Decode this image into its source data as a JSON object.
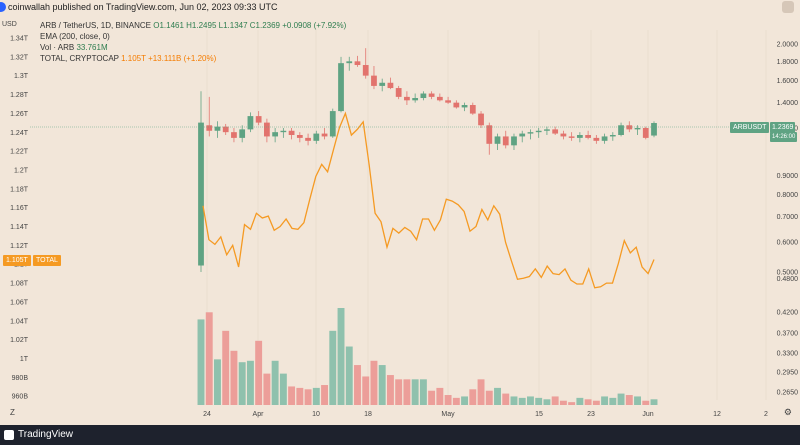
{
  "header": {
    "published_text": "coinwallah published on TradingView.com, Jun 02, 2023 09:33 UTC"
  },
  "legend": {
    "line1_prefix": "ARB / TetherUS, 1D, BINANCE",
    "line1_ohlc": "O1.1461 H1.2495 L1.1347 C1.2369 +0.0908 (+7.92%)",
    "ema": "EMA (200, close, 0)",
    "vol_label": "Vol · ARB",
    "vol_value": "33.761M",
    "total_label": "TOTAL, CRYPTOCAP",
    "total_value": "1.105T +13.111B (+1.20%)"
  },
  "tags": {
    "arbusdt_label": "ARBUSDT",
    "arbusdt_price": "1.2369",
    "arbusdt_timer": "14:26:00",
    "total_value": "1.105T",
    "total_label": "TOTAL"
  },
  "footer": {
    "brand": "TradingView",
    "zoom_label": "Z",
    "settings_icon": "gear-icon"
  },
  "colors": {
    "background": "#f2e6d9",
    "up": "#5fa383",
    "down": "#e2736d",
    "vol_up": "#8fc1ad",
    "vol_down": "#ec9e99",
    "total_line": "#f59a23",
    "price_tag": "#5fa383",
    "total_tag": "#f59a23"
  },
  "chart_data": {
    "type": "candlestick",
    "left_axis": {
      "label": "USD",
      "ticks": [
        "1.34T",
        "1.32T",
        "1.3T",
        "1.28T",
        "1.26T",
        "1.24T",
        "1.22T",
        "1.2T",
        "1.18T",
        "1.16T",
        "1.14T",
        "1.12T",
        "1.1T",
        "1.08T",
        "1.06T",
        "1.04T",
        "1.02T",
        "1T",
        "980B",
        "960B"
      ],
      "range": [
        0.95,
        1.345
      ]
    },
    "right_axis": {
      "scale": "log",
      "ticks": [
        "2.0000",
        "1.8000",
        "1.6000",
        "1.4000",
        "1.2000",
        "0.9000",
        "0.8000",
        "0.7000",
        "0.6000",
        "0.5000",
        "0.4800",
        "0.4200",
        "0.3700",
        "0.3300",
        "0.2950",
        "0.2650"
      ]
    },
    "x_axis": {
      "ticks": [
        "24",
        "Apr",
        "10",
        "18",
        "May",
        "15",
        "23",
        "Jun",
        "12",
        "2"
      ]
    },
    "candles": [
      {
        "o": 0.52,
        "h": 1.5,
        "l": 0.5,
        "c": 1.24
      },
      {
        "o": 1.22,
        "h": 1.45,
        "l": 1.14,
        "c": 1.18
      },
      {
        "o": 1.18,
        "h": 1.25,
        "l": 1.13,
        "c": 1.21
      },
      {
        "o": 1.21,
        "h": 1.23,
        "l": 1.15,
        "c": 1.17
      },
      {
        "o": 1.17,
        "h": 1.2,
        "l": 1.1,
        "c": 1.13
      },
      {
        "o": 1.13,
        "h": 1.22,
        "l": 1.1,
        "c": 1.19
      },
      {
        "o": 1.19,
        "h": 1.32,
        "l": 1.17,
        "c": 1.29
      },
      {
        "o": 1.29,
        "h": 1.33,
        "l": 1.22,
        "c": 1.24
      },
      {
        "o": 1.24,
        "h": 1.27,
        "l": 1.1,
        "c": 1.14
      },
      {
        "o": 1.14,
        "h": 1.2,
        "l": 1.1,
        "c": 1.17
      },
      {
        "o": 1.17,
        "h": 1.2,
        "l": 1.13,
        "c": 1.18
      },
      {
        "o": 1.18,
        "h": 1.2,
        "l": 1.12,
        "c": 1.15
      },
      {
        "o": 1.15,
        "h": 1.17,
        "l": 1.1,
        "c": 1.13
      },
      {
        "o": 1.13,
        "h": 1.16,
        "l": 1.08,
        "c": 1.11
      },
      {
        "o": 1.11,
        "h": 1.18,
        "l": 1.09,
        "c": 1.16
      },
      {
        "o": 1.16,
        "h": 1.2,
        "l": 1.12,
        "c": 1.14
      },
      {
        "o": 1.14,
        "h": 1.35,
        "l": 1.13,
        "c": 1.33
      },
      {
        "o": 1.33,
        "h": 1.85,
        "l": 1.32,
        "c": 1.78
      },
      {
        "o": 1.78,
        "h": 1.85,
        "l": 1.7,
        "c": 1.8
      },
      {
        "o": 1.8,
        "h": 1.86,
        "l": 1.74,
        "c": 1.76
      },
      {
        "o": 1.76,
        "h": 1.95,
        "l": 1.62,
        "c": 1.65
      },
      {
        "o": 1.65,
        "h": 1.75,
        "l": 1.52,
        "c": 1.55
      },
      {
        "o": 1.55,
        "h": 1.62,
        "l": 1.5,
        "c": 1.58
      },
      {
        "o": 1.58,
        "h": 1.63,
        "l": 1.52,
        "c": 1.53
      },
      {
        "o": 1.53,
        "h": 1.55,
        "l": 1.43,
        "c": 1.45
      },
      {
        "o": 1.45,
        "h": 1.5,
        "l": 1.38,
        "c": 1.42
      },
      {
        "o": 1.42,
        "h": 1.48,
        "l": 1.4,
        "c": 1.44
      },
      {
        "o": 1.44,
        "h": 1.5,
        "l": 1.42,
        "c": 1.48
      },
      {
        "o": 1.48,
        "h": 1.5,
        "l": 1.43,
        "c": 1.45
      },
      {
        "o": 1.45,
        "h": 1.48,
        "l": 1.41,
        "c": 1.42
      },
      {
        "o": 1.42,
        "h": 1.45,
        "l": 1.39,
        "c": 1.4
      },
      {
        "o": 1.4,
        "h": 1.42,
        "l": 1.35,
        "c": 1.36
      },
      {
        "o": 1.36,
        "h": 1.4,
        "l": 1.33,
        "c": 1.38
      },
      {
        "o": 1.38,
        "h": 1.4,
        "l": 1.3,
        "c": 1.31
      },
      {
        "o": 1.31,
        "h": 1.33,
        "l": 1.2,
        "c": 1.22
      },
      {
        "o": 1.22,
        "h": 1.24,
        "l": 1.02,
        "c": 1.09
      },
      {
        "o": 1.09,
        "h": 1.16,
        "l": 1.05,
        "c": 1.14
      },
      {
        "o": 1.14,
        "h": 1.18,
        "l": 1.06,
        "c": 1.08
      },
      {
        "o": 1.08,
        "h": 1.16,
        "l": 1.05,
        "c": 1.14
      },
      {
        "o": 1.14,
        "h": 1.18,
        "l": 1.1,
        "c": 1.16
      },
      {
        "o": 1.16,
        "h": 1.19,
        "l": 1.12,
        "c": 1.17
      },
      {
        "o": 1.17,
        "h": 1.2,
        "l": 1.13,
        "c": 1.18
      },
      {
        "o": 1.18,
        "h": 1.21,
        "l": 1.15,
        "c": 1.19
      },
      {
        "o": 1.19,
        "h": 1.21,
        "l": 1.15,
        "c": 1.16
      },
      {
        "o": 1.16,
        "h": 1.18,
        "l": 1.12,
        "c": 1.14
      },
      {
        "o": 1.14,
        "h": 1.17,
        "l": 1.11,
        "c": 1.13
      },
      {
        "o": 1.13,
        "h": 1.17,
        "l": 1.1,
        "c": 1.15
      },
      {
        "o": 1.15,
        "h": 1.18,
        "l": 1.12,
        "c": 1.13
      },
      {
        "o": 1.13,
        "h": 1.15,
        "l": 1.09,
        "c": 1.11
      },
      {
        "o": 1.11,
        "h": 1.16,
        "l": 1.09,
        "c": 1.14
      },
      {
        "o": 1.14,
        "h": 1.17,
        "l": 1.11,
        "c": 1.15
      },
      {
        "o": 1.15,
        "h": 1.24,
        "l": 1.14,
        "c": 1.22
      },
      {
        "o": 1.22,
        "h": 1.25,
        "l": 1.17,
        "c": 1.19
      },
      {
        "o": 1.19,
        "h": 1.22,
        "l": 1.15,
        "c": 1.2
      },
      {
        "o": 1.2,
        "h": 1.21,
        "l": 1.12,
        "c": 1.13
      },
      {
        "o": 1.1461,
        "h": 1.2495,
        "l": 1.1347,
        "c": 1.2369
      }
    ],
    "volume": [
      0.6,
      0.65,
      0.32,
      0.52,
      0.38,
      0.3,
      0.31,
      0.45,
      0.22,
      0.31,
      0.22,
      0.13,
      0.12,
      0.11,
      0.12,
      0.14,
      0.52,
      0.68,
      0.41,
      0.28,
      0.2,
      0.31,
      0.28,
      0.21,
      0.18,
      0.18,
      0.18,
      0.18,
      0.1,
      0.12,
      0.07,
      0.05,
      0.06,
      0.11,
      0.18,
      0.1,
      0.12,
      0.08,
      0.06,
      0.05,
      0.06,
      0.05,
      0.04,
      0.06,
      0.03,
      0.02,
      0.05,
      0.04,
      0.03,
      0.06,
      0.05,
      0.08,
      0.07,
      0.06,
      0.03,
      0.04
    ],
    "total_series": {
      "name": "TOTAL, CRYPTOCAP",
      "values": [
        1.162,
        1.126,
        1.121,
        1.129,
        1.11,
        1.12,
        1.097,
        1.142,
        1.137,
        1.154,
        1.149,
        1.151,
        1.136,
        1.14,
        1.148,
        1.138,
        1.137,
        1.144,
        1.169,
        1.193,
        1.206,
        1.198,
        1.222,
        1.245,
        1.26,
        1.237,
        1.243,
        1.251,
        1.205,
        1.154,
        1.145,
        1.118,
        1.138,
        1.133,
        1.139,
        1.135,
        1.126,
        1.148,
        1.148,
        1.136,
        1.147,
        1.169,
        1.167,
        1.163,
        1.156,
        1.135,
        1.14,
        1.158,
        1.147,
        1.162,
        1.153,
        1.123,
        1.103,
        1.084,
        1.085,
        1.087,
        1.095,
        1.086,
        1.098,
        1.09,
        1.089,
        1.095,
        1.083,
        1.079,
        1.079,
        1.095,
        1.075,
        1.076,
        1.08,
        1.08,
        1.101,
        1.125,
        1.112,
        1.118,
        1.097,
        1.09,
        1.105
      ]
    }
  }
}
